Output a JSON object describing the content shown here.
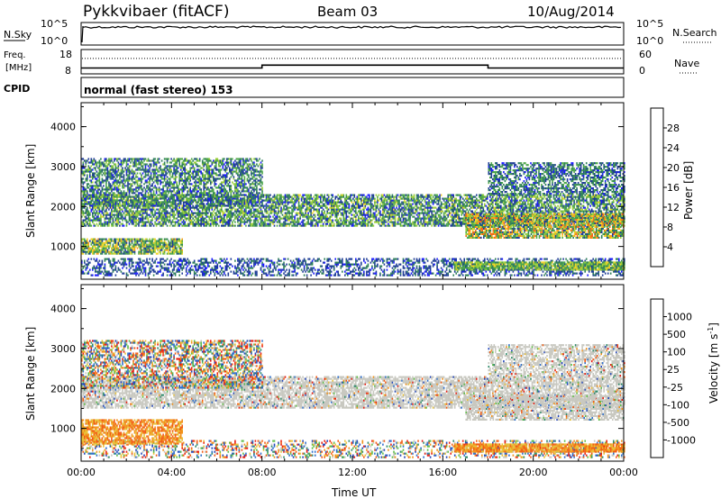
{
  "header": {
    "station": "Pykkvibaer (fitACF)",
    "beam": "Beam 03",
    "date": "10/Aug/2014"
  },
  "nsky_panel": {
    "left_label": "N.Sky",
    "left_ticks": [
      "10^5",
      "10^0"
    ],
    "right_ticks": [
      "10^5",
      "10^0"
    ],
    "right_label": "N.Search"
  },
  "freq_panel": {
    "left_label_line1": "Freq.",
    "left_label_line2": "[MHz]",
    "left_ticks": [
      "18",
      "8"
    ],
    "right_ticks": [
      "60",
      "0"
    ],
    "right_label": "Nave",
    "freq_steps_MHz": [
      [
        0,
        10.4
      ],
      [
        8.0,
        11.6
      ],
      [
        18.0,
        10.4
      ],
      [
        24,
        10.4
      ]
    ],
    "nave_level": 38
  },
  "cpid": {
    "label": "CPID",
    "text": "normal (fast stereo) 153"
  },
  "chart_data": [
    {
      "type": "heatmap",
      "name": "power",
      "ylabel": "Slant Range [km]",
      "yticks": [
        "1000",
        "2000",
        "3000",
        "4000"
      ],
      "ylim": [
        180,
        4600
      ],
      "xlim": [
        0,
        24
      ],
      "colorbar_label": "Power [dB]",
      "colorbar_ticks": [
        "4",
        "8",
        "12",
        "16",
        "20",
        "24",
        "28"
      ],
      "colorbar_colors": [
        "#1a1aff",
        "#1e3c96",
        "#2e7f5a",
        "#4fa84a",
        "#9ccf3a",
        "#f2d326",
        "#f7a21e",
        "#f26a1a",
        "#e82a12"
      ],
      "scatter_bands_km": [
        {
          "t": [
            0,
            24
          ],
          "r": [
            260,
            700
          ],
          "density": 0.45,
          "power": [
            4,
            10
          ]
        },
        {
          "t": [
            0,
            4.5
          ],
          "r": [
            800,
            1200
          ],
          "density": 0.8,
          "power": [
            6,
            22
          ]
        },
        {
          "t": [
            0,
            24
          ],
          "r": [
            1500,
            2300
          ],
          "density": 0.7,
          "power": [
            4,
            18
          ]
        },
        {
          "t": [
            0,
            8
          ],
          "r": [
            2000,
            3200
          ],
          "density": 0.6,
          "power": [
            4,
            16
          ]
        },
        {
          "t": [
            16.5,
            24
          ],
          "r": [
            400,
            600
          ],
          "density": 0.9,
          "power": [
            8,
            20
          ]
        },
        {
          "t": [
            17,
            24
          ],
          "r": [
            1200,
            1800
          ],
          "density": 0.8,
          "power": [
            6,
            26
          ]
        },
        {
          "t": [
            18,
            24
          ],
          "r": [
            2300,
            3100
          ],
          "density": 0.6,
          "power": [
            4,
            14
          ]
        }
      ]
    },
    {
      "type": "heatmap",
      "name": "velocity",
      "ylabel": "Slant Range [km]",
      "yticks": [
        "1000",
        "2000",
        "3000",
        "4000"
      ],
      "ylim": [
        180,
        4600
      ],
      "xlim": [
        0,
        24
      ],
      "xticks": [
        "00:00",
        "04:00",
        "08:00",
        "12:00",
        "16:00",
        "20:00",
        "00:00"
      ],
      "xlabel": "Time UT",
      "colorbar_label": "Velocity [m s",
      "colorbar_label_exp": "-1",
      "colorbar_ticks": [
        "1000",
        "500",
        "100",
        "25",
        "-25",
        "-100",
        "-500",
        "-1000"
      ],
      "colorbar_colors": [
        "#2446b8",
        "#2e6fcc",
        "#2f8a6a",
        "#5fbd49",
        "#c8c8c0",
        "#e8c23a",
        "#f2921c",
        "#f25c14",
        "#e81c10"
      ],
      "scatter_bands_km": [
        {
          "t": [
            0,
            24
          ],
          "r": [
            260,
            700
          ],
          "density": 0.35,
          "vel": "mixed"
        },
        {
          "t": [
            0,
            4.5
          ],
          "r": [
            600,
            1200
          ],
          "density": 0.75,
          "vel": "negative"
        },
        {
          "t": [
            0,
            24
          ],
          "r": [
            1500,
            2300
          ],
          "density": 0.7,
          "vel": "ground"
        },
        {
          "t": [
            0,
            8
          ],
          "r": [
            2000,
            3200
          ],
          "density": 0.55,
          "vel": "mixed"
        },
        {
          "t": [
            16.5,
            24
          ],
          "r": [
            400,
            600
          ],
          "density": 0.9,
          "vel": "negative"
        },
        {
          "t": [
            17,
            24
          ],
          "r": [
            1200,
            1800
          ],
          "density": 0.7,
          "vel": "ground"
        },
        {
          "t": [
            18,
            24
          ],
          "r": [
            2300,
            3100
          ],
          "density": 0.6,
          "vel": "ground"
        }
      ]
    }
  ]
}
